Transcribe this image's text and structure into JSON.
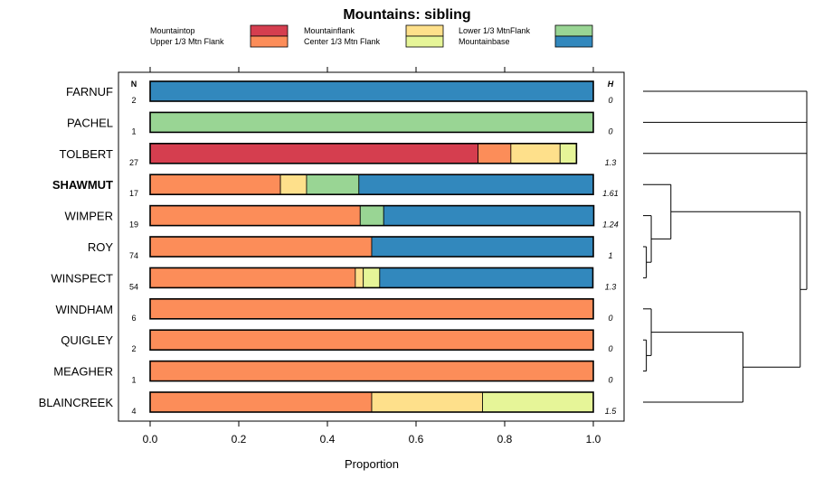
{
  "chart_data": {
    "type": "bar",
    "orientation": "horizontal",
    "stacked": true,
    "title": "Mountains: sibling",
    "xlabel": "Proportion",
    "ylabel": "",
    "xlim": [
      0,
      1
    ],
    "x_ticks": [
      "0.0",
      "0.2",
      "0.4",
      "0.6",
      "0.8",
      "1.0"
    ],
    "x_tick_values": [
      0,
      0.2,
      0.4,
      0.6,
      0.8,
      1.0
    ],
    "n_header": "N",
    "h_header": "H",
    "highlighted_category": "SHAWMUT",
    "legend": [
      {
        "name": "Mountaintop",
        "color": "#d53e4f"
      },
      {
        "name": "Upper 1/3 Mtn Flank",
        "color": "#fc8d59"
      },
      {
        "name": "Mountainflank",
        "color": "#fee08b"
      },
      {
        "name": "Center 1/3 Mtn Flank",
        "color": "#e6f598"
      },
      {
        "name": "Lower 1/3 MtnFlank",
        "color": "#99d594"
      },
      {
        "name": "Mountainbase",
        "color": "#3288bd"
      }
    ],
    "categories": [
      "FARNUF",
      "PACHEL",
      "TOLBERT",
      "SHAWMUT",
      "WIMPER",
      "ROY",
      "WINSPECT",
      "WINDHAM",
      "QUIGLEY",
      "MEAGHER",
      "BLAINCREEK"
    ],
    "n": [
      "2",
      "1",
      "27",
      "17",
      "19",
      "74",
      "54",
      "6",
      "2",
      "1",
      "4"
    ],
    "h": [
      "0",
      "0",
      "1.3",
      "1.61",
      "1.24",
      "1",
      "1.3",
      "0",
      "0",
      "0",
      "1.5"
    ],
    "series": [
      {
        "name": "Mountaintop",
        "values": [
          0,
          0,
          0.74,
          0,
          0,
          0,
          0,
          0,
          0,
          0,
          0
        ]
      },
      {
        "name": "Upper 1/3 Mtn Flank",
        "values": [
          0,
          0,
          0.074,
          0.294,
          0.474,
          0.5,
          0.463,
          1,
          1,
          1,
          0.5
        ]
      },
      {
        "name": "Mountainflank",
        "values": [
          0,
          0,
          0.111,
          0.059,
          0,
          0,
          0.018,
          0,
          0,
          0,
          0.25
        ]
      },
      {
        "name": "Center 1/3 Mtn Flank",
        "values": [
          0,
          0,
          0.037,
          0,
          0,
          0,
          0.037,
          0,
          0,
          0,
          0.25
        ]
      },
      {
        "name": "Lower 1/3 MtnFlank",
        "values": [
          0,
          1,
          0,
          0.118,
          0.053,
          0,
          0,
          0,
          0,
          0,
          0
        ]
      },
      {
        "name": "Mountainbase",
        "values": [
          1,
          0,
          0,
          0.529,
          0.474,
          0.5,
          0.481,
          0,
          0,
          0,
          0
        ]
      }
    ],
    "dendrogram": {
      "type": "hierarchical-clustering",
      "merges": [
        {
          "left": "ROY",
          "right": "WINSPECT",
          "height": 0.02
        },
        {
          "left": "QUIGLEY",
          "right": "MEAGHER",
          "height": 0.02
        },
        {
          "left": "WINDHAM",
          "right": "QUIGLEY+MEAGHER",
          "height": 0.05
        },
        {
          "left": "WIMPER",
          "right": "ROY+WINSPECT",
          "height": 0.05
        },
        {
          "left": "SHAWMUT",
          "right": "WIMPER+ROY+WINSPECT",
          "height": 0.17
        },
        {
          "left": "WINDHAM+QUIGLEY+MEAGHER",
          "right": "BLAINCREEK",
          "height": 0.61
        },
        {
          "left": "SHAWMUT-group",
          "right": "WINDHAM-group",
          "height": 0.96
        },
        {
          "left": "TOLBERT",
          "right": "SHAWMUT+WINDHAM-group",
          "height": 1.0
        },
        {
          "left": "PACHEL",
          "right": "TOLBERT-group",
          "height": 1.0
        },
        {
          "left": "FARNUF",
          "right": "PACHEL-group",
          "height": 1.0
        }
      ]
    }
  }
}
